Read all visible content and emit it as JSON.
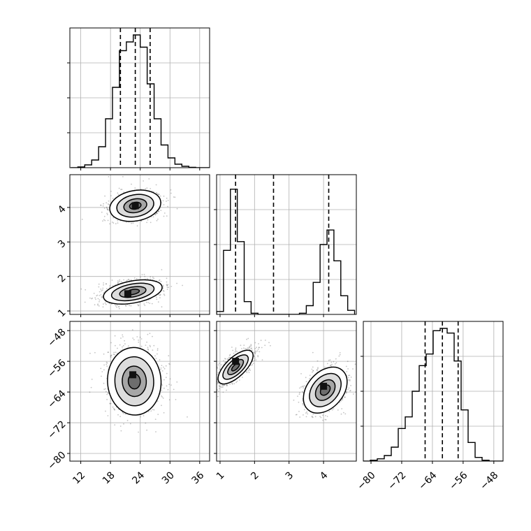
{
  "chart_data": {
    "type": "corner",
    "parameters": 3,
    "grid": true,
    "colors": {
      "line": "#000000",
      "grid": "#b0b0b0",
      "scatter": "#555555",
      "background": "#ffffff"
    },
    "quantile_lines": {
      "style": "dashed",
      "param0": [
        20.0,
        23.0,
        26.0
      ],
      "param1": [
        1.45,
        2.55,
        4.15
      ],
      "param2": [
        -65.9,
        -61.4,
        -57.3
      ]
    },
    "axis_ranges": {
      "param0": [
        9.8,
        38.0
      ],
      "param1": [
        0.9,
        4.95
      ],
      "param2": [
        -82.0,
        -45.6
      ]
    },
    "ticks": {
      "param0": {
        "values": [
          12,
          18,
          24,
          30,
          36
        ],
        "labels": [
          "12",
          "18",
          "24",
          "30",
          "36"
        ]
      },
      "param1": {
        "values": [
          1,
          2,
          3,
          4
        ],
        "labels": [
          "1",
          "2",
          "3",
          "4"
        ]
      },
      "param2_x": {
        "values": [
          -80,
          -72,
          -64,
          -56,
          -48
        ],
        "labels": [
          "−80",
          "−72",
          "−64",
          "−56",
          "−48"
        ]
      },
      "param1_y": {
        "values": [
          1,
          2,
          3,
          4
        ],
        "labels": [
          "1",
          "2",
          "3",
          "4"
        ]
      },
      "param2_y": {
        "values": [
          -48,
          -56,
          -64,
          -72,
          -80
        ],
        "labels": [
          "−48",
          "−56",
          "−64",
          "−72",
          "−80"
        ]
      }
    },
    "histograms": [
      {
        "param": "param0",
        "bin_edges": [
          10.0,
          11.4,
          12.8,
          14.2,
          15.6,
          17.0,
          18.4,
          19.8,
          21.2,
          22.6,
          24.0,
          25.4,
          26.8,
          28.2,
          29.6,
          31.0,
          32.4,
          33.8,
          35.2,
          36.6,
          38.0
        ],
        "counts": [
          0,
          2,
          8,
          22,
          60,
          140,
          230,
          335,
          360,
          380,
          345,
          240,
          140,
          65,
          28,
          10,
          4,
          1,
          0,
          0
        ],
        "count_max": 400
      },
      {
        "param": "param1",
        "bin_edges": [
          0.9,
          1.1,
          1.3,
          1.5,
          1.7,
          1.9,
          2.1,
          2.3,
          2.5,
          2.7,
          2.9,
          3.1,
          3.3,
          3.5,
          3.7,
          3.9,
          4.1,
          4.3,
          4.5,
          4.7,
          4.9
        ],
        "counts": [
          5,
          110,
          215,
          125,
          22,
          2,
          0,
          0,
          0,
          0,
          0,
          0,
          2,
          15,
          55,
          120,
          145,
          92,
          32,
          7
        ],
        "count_max": 240
      },
      {
        "param": "param2",
        "bin_edges": [
          -82.0,
          -80.18,
          -78.36,
          -76.54,
          -74.72,
          -72.9,
          -71.08,
          -69.26,
          -67.44,
          -65.62,
          -63.8,
          -61.98,
          -60.16,
          -58.34,
          -56.52,
          -54.7,
          -52.88,
          -51.06,
          -49.24,
          -47.42,
          -45.6
        ],
        "counts": [
          0,
          2,
          5,
          12,
          30,
          70,
          95,
          150,
          205,
          230,
          280,
          285,
          275,
          215,
          110,
          40,
          8,
          2,
          0,
          0
        ],
        "count_max": 300
      }
    ],
    "density_panels": [
      {
        "x": "param0",
        "y": "param1",
        "modes": [
          {
            "center": [
              23.0,
              4.05
            ],
            "spread": [
              2.6,
              0.22
            ],
            "corr": 0.35,
            "density_scale": 0.8,
            "peak": [
              23.0,
              4.05
            ]
          },
          {
            "center": [
              22.5,
              1.55
            ],
            "spread": [
              3.0,
              0.16
            ],
            "corr": 0.55,
            "density_scale": 1.0,
            "peak": [
              21.5,
              1.5
            ]
          }
        ]
      },
      {
        "x": "param0",
        "y": "param2",
        "modes": [
          {
            "center": [
              22.8,
              -61.2
            ],
            "spread": [
              2.7,
              4.4
            ],
            "corr": 0.05,
            "density_scale": 1.0,
            "peak": [
              22.5,
              -59.5
            ]
          }
        ]
      },
      {
        "x": "param1",
        "y": "param2",
        "modes": [
          {
            "center": [
              1.45,
              -57.5
            ],
            "spread": [
              0.14,
              2.9
            ],
            "corr": -0.55,
            "density_scale": 1.0,
            "peak": [
              1.45,
              -56.0
            ]
          },
          {
            "center": [
              4.05,
              -63.5
            ],
            "spread": [
              0.26,
              3.4
            ],
            "corr": -0.7,
            "density_scale": 0.8,
            "peak": [
              4.0,
              -62.5
            ]
          }
        ]
      }
    ]
  }
}
